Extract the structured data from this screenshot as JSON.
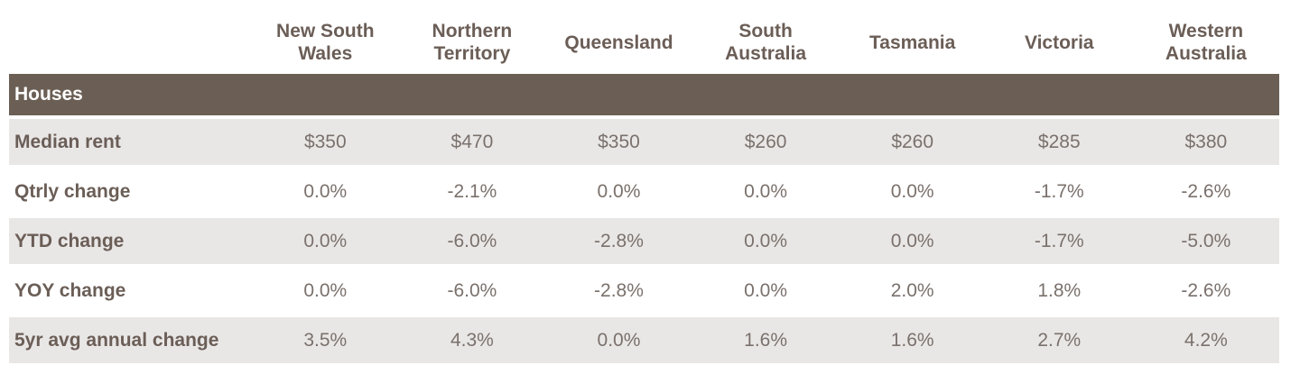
{
  "columns": [
    "New South Wales",
    "Northern Territory",
    "Queensland",
    "South Australia",
    "Tasmania",
    "Victoria",
    "Western Australia"
  ],
  "column_lines": [
    [
      "New South",
      "Wales"
    ],
    [
      "Northern",
      "Territory"
    ],
    [
      "Queensland"
    ],
    [
      "South",
      "Australia"
    ],
    [
      "Tasmania"
    ],
    [
      "Victoria"
    ],
    [
      "Western",
      "Australia"
    ]
  ],
  "section_title": "Houses",
  "rows": [
    {
      "label": "Median rent",
      "values": [
        "$350",
        "$470",
        "$350",
        "$260",
        "$260",
        "$285",
        "$380"
      ]
    },
    {
      "label": "Qtrly change",
      "values": [
        "0.0%",
        "-2.1%",
        "0.0%",
        "0.0%",
        "0.0%",
        "-1.7%",
        "-2.6%"
      ]
    },
    {
      "label": "YTD change",
      "values": [
        "0.0%",
        "-6.0%",
        "-2.8%",
        "0.0%",
        "0.0%",
        "-1.7%",
        "-5.0%"
      ]
    },
    {
      "label": "YOY change",
      "values": [
        "0.0%",
        "-6.0%",
        "-2.8%",
        "0.0%",
        "2.0%",
        "1.8%",
        "-2.6%"
      ]
    },
    {
      "label": "5yr avg annual change",
      "values": [
        "3.5%",
        "4.3%",
        "0.0%",
        "1.6%",
        "1.6%",
        "2.7%",
        "4.2%"
      ]
    }
  ],
  "colors": {
    "header_text": "#6b5e57",
    "section_bg": "#6b5f55",
    "band_bg": "#e9e7e6",
    "value_text": "#7a716c"
  }
}
